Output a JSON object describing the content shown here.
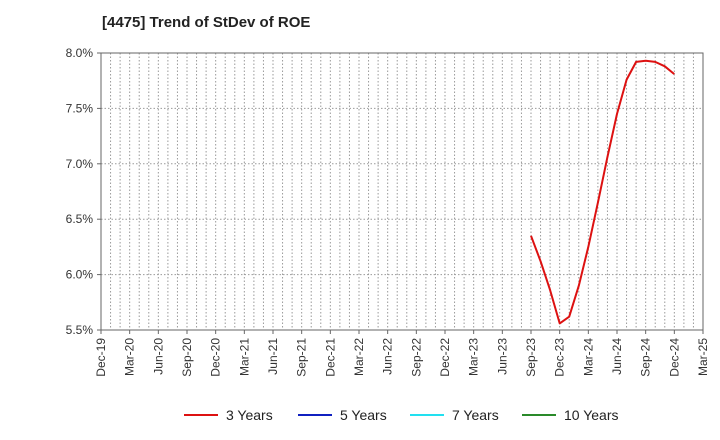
{
  "chart_data": {
    "type": "line",
    "title": "[4475]  Trend of StDev of ROE",
    "xlabel": "",
    "ylabel": "",
    "ylim": [
      5.5,
      8.0
    ],
    "y_ticks": [
      5.5,
      6.0,
      6.5,
      7.0,
      7.5,
      8.0
    ],
    "y_tick_labels": [
      "5.5%",
      "6.0%",
      "6.5%",
      "7.0%",
      "7.5%",
      "8.0%"
    ],
    "x_tick_labels": [
      "Dec-19",
      "Mar-20",
      "Jun-20",
      "Sep-20",
      "Dec-20",
      "Mar-21",
      "Jun-21",
      "Sep-21",
      "Dec-21",
      "Mar-22",
      "Jun-22",
      "Sep-22",
      "Dec-22",
      "Mar-23",
      "Jun-23",
      "Sep-23",
      "Dec-23",
      "Mar-24",
      "Jun-24",
      "Sep-24",
      "Dec-24",
      "Mar-25"
    ],
    "grid": true,
    "legend_position": "bottom",
    "series": [
      {
        "name": "3 Years",
        "color": "#dd1111",
        "points": [
          {
            "m": 45,
            "v": 6.35
          },
          {
            "m": 46,
            "v": 6.12
          },
          {
            "m": 47,
            "v": 5.86
          },
          {
            "m": 48,
            "v": 5.56
          },
          {
            "m": 49,
            "v": 5.62
          },
          {
            "m": 50,
            "v": 5.9
          },
          {
            "m": 51,
            "v": 6.25
          },
          {
            "m": 52,
            "v": 6.65
          },
          {
            "m": 53,
            "v": 7.06
          },
          {
            "m": 54,
            "v": 7.45
          },
          {
            "m": 55,
            "v": 7.76
          },
          {
            "m": 56,
            "v": 7.92
          },
          {
            "m": 57,
            "v": 7.93
          },
          {
            "m": 58,
            "v": 7.92
          },
          {
            "m": 59,
            "v": 7.88
          },
          {
            "m": 60,
            "v": 7.81
          }
        ]
      },
      {
        "name": "5 Years",
        "color": "#1020c0",
        "points": []
      },
      {
        "name": "7 Years",
        "color": "#22e0f0",
        "points": []
      },
      {
        "name": "10 Years",
        "color": "#2a8a2a",
        "points": []
      }
    ]
  }
}
